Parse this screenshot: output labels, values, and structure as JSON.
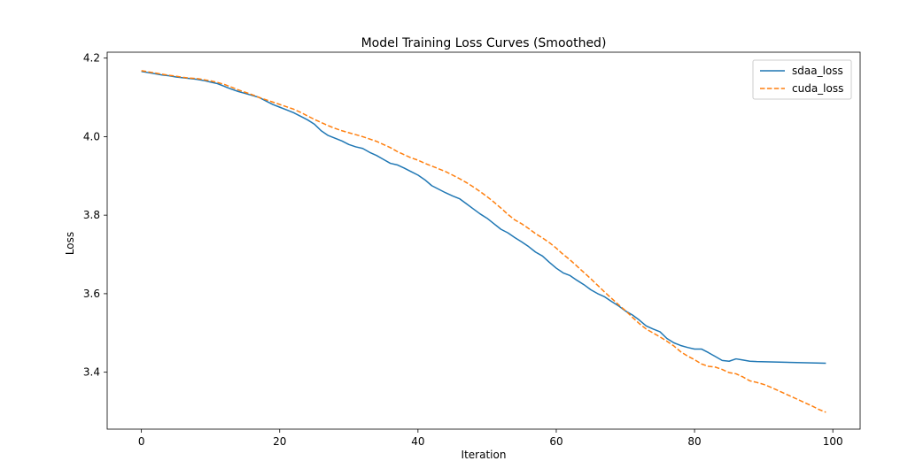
{
  "chart_data": {
    "type": "line",
    "title": "Model Training Loss Curves (Smoothed)",
    "xlabel": "Iteration",
    "ylabel": "Loss",
    "xlim": [
      -4.95,
      103.95
    ],
    "ylim": [
      3.255,
      4.215
    ],
    "xticks": [
      0,
      20,
      40,
      60,
      80,
      100
    ],
    "yticks": [
      3.4,
      3.6,
      3.8,
      4.0,
      4.2
    ],
    "xtick_labels": [
      "0",
      "20",
      "40",
      "60",
      "80",
      "100"
    ],
    "ytick_labels": [
      "3.4",
      "3.6",
      "3.8",
      "4.0",
      "4.2"
    ],
    "grid": false,
    "legend_position": "top-right",
    "series": [
      {
        "name": "sdaa_loss",
        "color": "#1f77b4",
        "linestyle": "solid",
        "x": [
          0,
          1,
          2,
          3,
          4,
          5,
          6,
          7,
          8,
          9,
          10,
          11,
          12,
          13,
          14,
          15,
          16,
          17,
          18,
          19,
          20,
          21,
          22,
          23,
          24,
          25,
          26,
          27,
          28,
          29,
          30,
          31,
          32,
          33,
          34,
          35,
          36,
          37,
          38,
          39,
          40,
          41,
          42,
          43,
          44,
          45,
          46,
          47,
          48,
          49,
          50,
          51,
          52,
          53,
          54,
          55,
          56,
          57,
          58,
          59,
          60,
          61,
          62,
          63,
          64,
          65,
          66,
          67,
          68,
          69,
          70,
          71,
          72,
          73,
          74,
          75,
          76,
          77,
          78,
          79,
          80,
          81,
          82,
          83,
          84,
          85,
          86,
          87,
          88,
          89,
          99
        ],
        "y": [
          4.166,
          4.163,
          4.16,
          4.157,
          4.155,
          4.152,
          4.15,
          4.148,
          4.146,
          4.143,
          4.139,
          4.135,
          4.128,
          4.121,
          4.115,
          4.11,
          4.105,
          4.1,
          4.091,
          4.082,
          4.075,
          4.068,
          4.061,
          4.052,
          4.043,
          4.032,
          4.015,
          4.003,
          3.996,
          3.989,
          3.98,
          3.974,
          3.97,
          3.96,
          3.952,
          3.942,
          3.932,
          3.928,
          3.92,
          3.911,
          3.902,
          3.89,
          3.875,
          3.866,
          3.857,
          3.849,
          3.842,
          3.829,
          3.816,
          3.803,
          3.792,
          3.778,
          3.764,
          3.755,
          3.743,
          3.732,
          3.72,
          3.706,
          3.696,
          3.68,
          3.665,
          3.653,
          3.646,
          3.634,
          3.623,
          3.61,
          3.6,
          3.592,
          3.58,
          3.569,
          3.556,
          3.546,
          3.533,
          3.518,
          3.51,
          3.503,
          3.486,
          3.475,
          3.468,
          3.463,
          3.459,
          3.459,
          3.45,
          3.44,
          3.43,
          3.428,
          3.434,
          3.431,
          3.428,
          3.427,
          3.423
        ]
      },
      {
        "name": "cuda_loss",
        "color": "#ff7f0e",
        "linestyle": "dashed",
        "x": [
          0,
          1,
          2,
          3,
          4,
          5,
          6,
          7,
          8,
          9,
          10,
          11,
          12,
          13,
          14,
          15,
          16,
          17,
          18,
          19,
          20,
          21,
          22,
          23,
          24,
          25,
          26,
          27,
          28,
          29,
          30,
          31,
          32,
          33,
          34,
          35,
          36,
          37,
          38,
          39,
          40,
          41,
          42,
          43,
          44,
          45,
          46,
          47,
          48,
          49,
          50,
          51,
          52,
          53,
          54,
          55,
          56,
          57,
          58,
          59,
          60,
          61,
          62,
          63,
          64,
          65,
          66,
          67,
          68,
          69,
          70,
          71,
          72,
          73,
          74,
          75,
          76,
          77,
          78,
          79,
          80,
          81,
          82,
          83,
          84,
          85,
          86,
          87,
          88,
          89,
          90,
          91,
          92,
          93,
          94,
          95,
          96,
          97,
          98,
          99
        ],
        "y": [
          4.168,
          4.165,
          4.162,
          4.159,
          4.156,
          4.154,
          4.151,
          4.149,
          4.148,
          4.145,
          4.142,
          4.138,
          4.133,
          4.126,
          4.119,
          4.113,
          4.107,
          4.1,
          4.094,
          4.088,
          4.082,
          4.076,
          4.07,
          4.062,
          4.053,
          4.044,
          4.036,
          4.028,
          4.021,
          4.015,
          4.01,
          4.005,
          4.0,
          3.994,
          3.988,
          3.98,
          3.972,
          3.962,
          3.954,
          3.946,
          3.94,
          3.932,
          3.925,
          3.918,
          3.911,
          3.902,
          3.893,
          3.883,
          3.872,
          3.86,
          3.847,
          3.833,
          3.818,
          3.802,
          3.788,
          3.778,
          3.766,
          3.753,
          3.742,
          3.73,
          3.716,
          3.7,
          3.686,
          3.67,
          3.654,
          3.638,
          3.621,
          3.604,
          3.588,
          3.572,
          3.557,
          3.54,
          3.524,
          3.51,
          3.5,
          3.49,
          3.479,
          3.467,
          3.452,
          3.441,
          3.432,
          3.421,
          3.415,
          3.413,
          3.407,
          3.399,
          3.396,
          3.388,
          3.378,
          3.374,
          3.369,
          3.362,
          3.354,
          3.346,
          3.338,
          3.33,
          3.322,
          3.314,
          3.305,
          3.298
        ]
      }
    ]
  }
}
